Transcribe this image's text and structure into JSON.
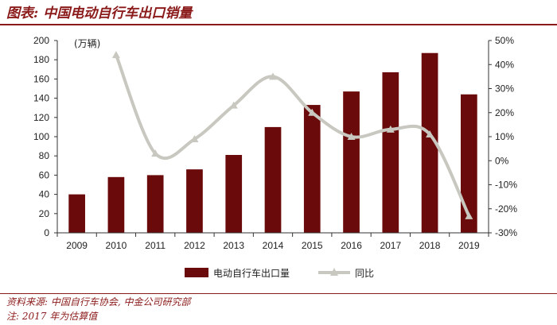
{
  "title": "图表: 中国电动自行车出口销量",
  "footer": {
    "source": "资料来源: 中国自行车协会, 中金公司研究部",
    "note": "注: 2017 年为估算值"
  },
  "colors": {
    "bar": "#6b0a0a",
    "line": "#c8c8c0",
    "accent": "#8b1a1a"
  },
  "chart_data": {
    "type": "bar",
    "categories": [
      "2009",
      "2010",
      "2011",
      "2012",
      "2013",
      "2014",
      "2015",
      "2016",
      "2017",
      "2018",
      "2019"
    ],
    "unit_label": "(万辆)",
    "series": [
      {
        "name": "电动自行车出口量",
        "type": "bar",
        "axis": "left",
        "values": [
          40,
          58,
          60,
          66,
          81,
          110,
          133,
          147,
          167,
          187,
          144
        ]
      },
      {
        "name": "同比",
        "type": "line",
        "axis": "right",
        "values": [
          null,
          44,
          3,
          9,
          23,
          35,
          20,
          10,
          13,
          11,
          -23
        ]
      }
    ],
    "y_left": {
      "min": 0,
      "max": 200,
      "ticks": [
        "0",
        "20",
        "40",
        "60",
        "80",
        "100",
        "120",
        "140",
        "160",
        "180",
        "200"
      ]
    },
    "y_right": {
      "min": -30,
      "max": 50,
      "ticks": [
        "-30%",
        "-20%",
        "-10%",
        "0%",
        "10%",
        "20%",
        "30%",
        "40%",
        "50%"
      ]
    },
    "grid": false,
    "legend": "bottom"
  }
}
